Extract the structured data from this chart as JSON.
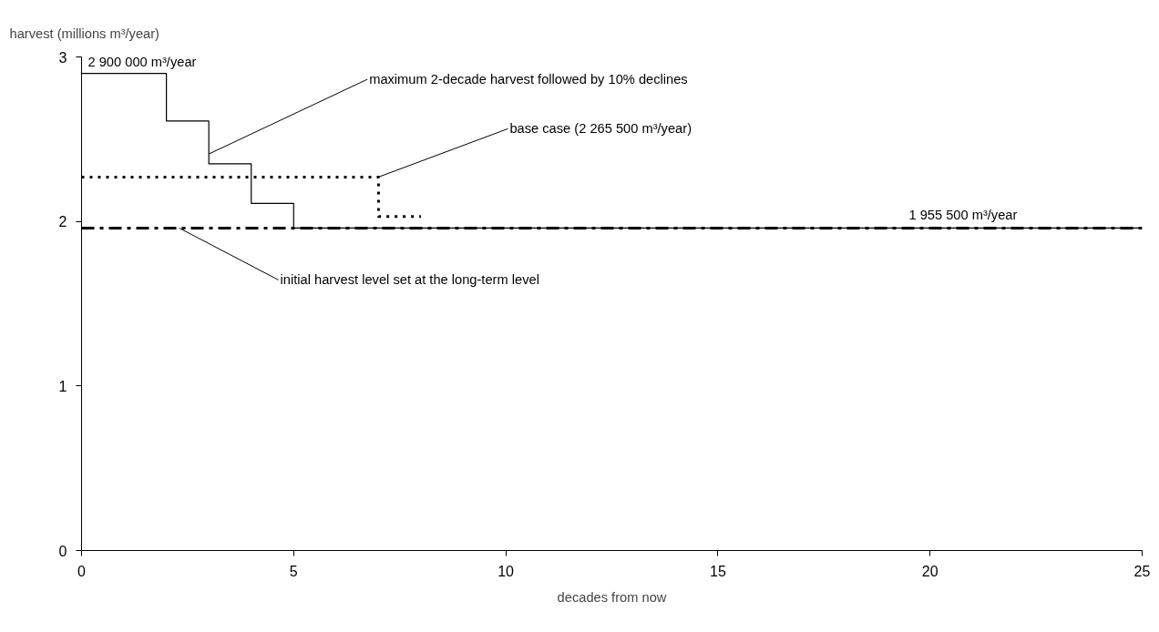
{
  "chart_data": {
    "type": "line",
    "xlabel": "decades from now",
    "ylabel": "harvest (millions m³/year)",
    "xlim": [
      0,
      25
    ],
    "xticks": [
      0,
      5,
      10,
      15,
      20,
      25
    ],
    "ylim": [
      0,
      3
    ],
    "yticks": [
      0,
      1,
      2,
      3
    ],
    "grid": false,
    "series": [
      {
        "type": "step",
        "color": "#000000",
        "line_style": "solid",
        "x": [
          0,
          2,
          3,
          4,
          5,
          25
        ],
        "values": [
          2.9,
          2.61,
          2.35,
          2.11,
          1.96,
          1.96
        ]
      },
      {
        "type": "step",
        "color": "#000000",
        "line_style": "dotted",
        "x": [
          0,
          7,
          8
        ],
        "values": [
          2.27,
          2.03,
          2.03
        ]
      },
      {
        "color": "#000000",
        "line_style": "dashdot",
        "x": [
          0,
          25
        ],
        "values": [
          1.96,
          1.96
        ]
      }
    ],
    "annotations": [
      {
        "text": "2 900 000 m³/year",
        "x": 0,
        "y": 2.9
      },
      {
        "text": "maximum 2-decade harvest followed by 10% declines",
        "x": 3,
        "y": 2.41
      },
      {
        "text": "base case (2 265 500 m³/year)",
        "x": 7,
        "y": 2.27
      },
      {
        "text": "1 955 500 m³/year",
        "x": 19.5,
        "y": 1.96
      },
      {
        "text": "initial harvest level set at the long-term level",
        "x": 2.3,
        "y": 1.96
      }
    ]
  }
}
